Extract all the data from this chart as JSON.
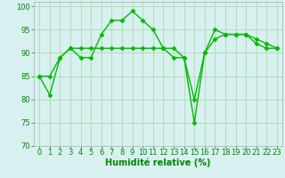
{
  "line1_x": [
    0,
    1,
    2,
    3,
    4,
    5,
    6,
    7,
    8,
    9,
    10,
    11,
    12,
    13,
    14,
    15,
    16,
    17,
    18,
    19,
    20,
    21,
    22,
    23
  ],
  "line1_y": [
    85,
    81,
    89,
    91,
    89,
    89,
    94,
    97,
    97,
    99,
    97,
    95,
    91,
    89,
    89,
    80,
    90,
    95,
    94,
    94,
    94,
    93,
    92,
    91
  ],
  "line2_x": [
    0,
    1,
    2,
    3,
    4,
    5,
    6,
    7,
    8,
    9,
    10,
    11,
    12,
    13,
    14,
    15,
    16,
    17,
    18,
    19,
    20,
    21,
    22,
    23
  ],
  "line2_y": [
    85,
    85,
    89,
    91,
    91,
    91,
    91,
    91,
    91,
    91,
    91,
    91,
    91,
    91,
    89,
    75,
    90,
    93,
    94,
    94,
    94,
    92,
    91,
    91
  ],
  "line_color": "#00bb00",
  "marker": "D",
  "marker_size": 2.5,
  "xlabel": "Humidité relative (%)",
  "xlim": [
    -0.5,
    23.5
  ],
  "ylim": [
    70,
    101
  ],
  "yticks": [
    70,
    75,
    80,
    85,
    90,
    95,
    100
  ],
  "xticks": [
    0,
    1,
    2,
    3,
    4,
    5,
    6,
    7,
    8,
    9,
    10,
    11,
    12,
    13,
    14,
    15,
    16,
    17,
    18,
    19,
    20,
    21,
    22,
    23
  ],
  "grid_color": "#aaddaa",
  "bg_color": "#d8f0f0",
  "tick_label_color": "#008800",
  "xlabel_color": "#008800",
  "xlabel_fontsize": 7,
  "tick_fontsize": 6,
  "linewidth": 1.0
}
